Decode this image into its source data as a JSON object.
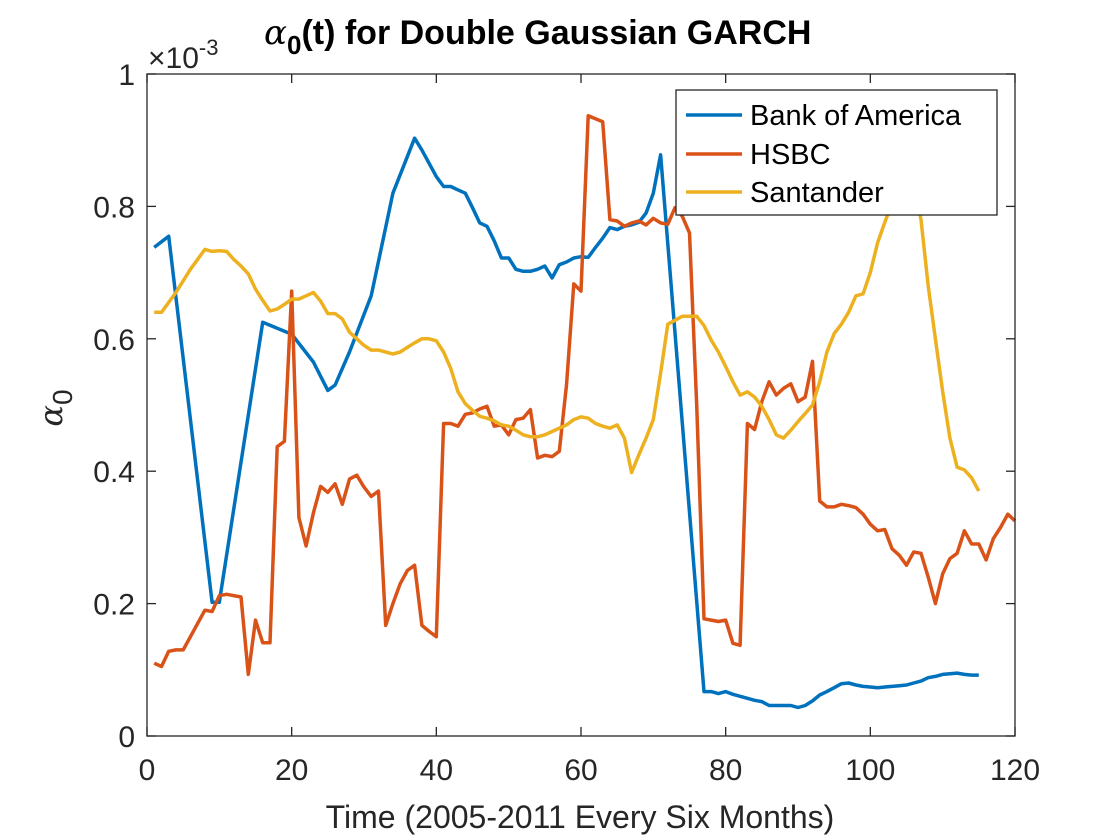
{
  "chart_data": {
    "type": "line",
    "title": {
      "alpha_symbol": "α",
      "subscript": "0",
      "rest": "(t) for Double Gaussian GARCH"
    },
    "xlabel": "Time (2005-2011 Every Six Months)",
    "ylabel": {
      "symbol": "α",
      "subscript": "0"
    },
    "exponent_label": {
      "prefix": "×10",
      "power": "-3"
    },
    "xlim": [
      0,
      120
    ],
    "ylim": [
      0,
      1
    ],
    "x_ticks": [
      0,
      20,
      40,
      60,
      80,
      100,
      120
    ],
    "y_ticks": [
      0,
      0.2,
      0.4,
      0.6,
      0.8,
      1
    ],
    "y_tick_labels": [
      "0",
      "0.2",
      "0.4",
      "0.6",
      "0.8",
      "1"
    ],
    "legend_position": "top-right",
    "grid": false,
    "series": [
      {
        "name": "Bank of America",
        "color": "#0072BD",
        "x": [
          1,
          3,
          9,
          10,
          16,
          20,
          23,
          25,
          26,
          28,
          31,
          34,
          37,
          38,
          40,
          41,
          42,
          43,
          44,
          45,
          46,
          47,
          48,
          49,
          50,
          51,
          52,
          53,
          54,
          55,
          56,
          57,
          58,
          59,
          60,
          61,
          62,
          63,
          64,
          65,
          66,
          67,
          68,
          69,
          70,
          71,
          77,
          78,
          79,
          80,
          81,
          82,
          83,
          84,
          85,
          86,
          87,
          88,
          89,
          90,
          91,
          92,
          93,
          94,
          95,
          96,
          97,
          98,
          99,
          100,
          101,
          102,
          103,
          104,
          105,
          106,
          107,
          108,
          109,
          110,
          111,
          112,
          113,
          114,
          115
        ],
        "values": [
          0.738,
          0.755,
          0.202,
          0.202,
          0.625,
          0.607,
          0.565,
          0.522,
          0.53,
          0.58,
          0.665,
          0.82,
          0.903,
          0.885,
          0.845,
          0.83,
          0.83,
          0.825,
          0.82,
          0.798,
          0.775,
          0.77,
          0.748,
          0.722,
          0.722,
          0.705,
          0.702,
          0.702,
          0.705,
          0.71,
          0.692,
          0.712,
          0.716,
          0.722,
          0.724,
          0.723,
          0.738,
          0.752,
          0.768,
          0.765,
          0.77,
          0.772,
          0.776,
          0.79,
          0.82,
          0.878,
          0.067,
          0.067,
          0.064,
          0.067,
          0.063,
          0.06,
          0.057,
          0.054,
          0.052,
          0.046,
          0.046,
          0.046,
          0.046,
          0.043,
          0.046,
          0.053,
          0.062,
          0.067,
          0.073,
          0.079,
          0.08,
          0.077,
          0.075,
          0.074,
          0.073,
          0.074,
          0.075,
          0.076,
          0.077,
          0.08,
          0.083,
          0.088,
          0.09,
          0.093,
          0.094,
          0.095,
          0.093,
          0.092,
          0.092
        ]
      },
      {
        "name": "HSBC",
        "color": "#D95319",
        "x": [
          1,
          2,
          3,
          4,
          5,
          8,
          9,
          10,
          11,
          13,
          14,
          15,
          16,
          17,
          18,
          19,
          20,
          21,
          22,
          23,
          24,
          25,
          26,
          27,
          28,
          29,
          30,
          31,
          32,
          33,
          34,
          35,
          36,
          37,
          38,
          39,
          40,
          41,
          42,
          43,
          44,
          45,
          46,
          47,
          48,
          49,
          50,
          51,
          52,
          53,
          54,
          55,
          56,
          57,
          58,
          59,
          60,
          61,
          63,
          64,
          65,
          66,
          67,
          68,
          69,
          70,
          71,
          72,
          73,
          74,
          75,
          76,
          77,
          78,
          79,
          80,
          81,
          82,
          83,
          84,
          85,
          86,
          87,
          88,
          89,
          90,
          91,
          92,
          93,
          94,
          95,
          96,
          97,
          98,
          99,
          100,
          101,
          102,
          103,
          104,
          105,
          106,
          107,
          108,
          109,
          110,
          111,
          112,
          113,
          114,
          115,
          116,
          117,
          118,
          119,
          120
        ],
        "values": [
          0.11,
          0.105,
          0.128,
          0.13,
          0.13,
          0.19,
          0.188,
          0.212,
          0.214,
          0.21,
          0.093,
          0.175,
          0.141,
          0.141,
          0.437,
          0.445,
          0.672,
          0.33,
          0.287,
          0.337,
          0.377,
          0.368,
          0.381,
          0.35,
          0.388,
          0.394,
          0.376,
          0.362,
          0.37,
          0.167,
          0.2,
          0.23,
          0.25,
          0.258,
          0.167,
          0.158,
          0.15,
          0.472,
          0.472,
          0.468,
          0.486,
          0.488,
          0.494,
          0.498,
          0.468,
          0.47,
          0.455,
          0.478,
          0.48,
          0.493,
          0.42,
          0.424,
          0.422,
          0.43,
          0.53,
          0.683,
          0.672,
          0.937,
          0.928,
          0.78,
          0.778,
          0.77,
          0.775,
          0.778,
          0.772,
          0.782,
          0.775,
          0.773,
          0.798,
          0.785,
          0.76,
          0.5,
          0.177,
          0.175,
          0.173,
          0.175,
          0.14,
          0.137,
          0.472,
          0.463,
          0.505,
          0.535,
          0.515,
          0.525,
          0.532,
          0.505,
          0.512,
          0.566,
          0.355,
          0.346,
          0.346,
          0.35,
          0.348,
          0.345,
          0.335,
          0.32,
          0.31,
          0.312,
          0.283,
          0.273,
          0.258,
          0.278,
          0.276,
          0.24,
          0.2,
          0.245,
          0.268,
          0.276,
          0.31,
          0.29,
          0.29,
          0.266,
          0.298,
          0.315,
          0.335,
          0.325
        ]
      },
      {
        "name": "Santander",
        "color": "#EDB120",
        "x": [
          1,
          2,
          4,
          6,
          8,
          9,
          10,
          11,
          12,
          13,
          14,
          15,
          16,
          17,
          18,
          19,
          20,
          21,
          22,
          23,
          24,
          25,
          26,
          27,
          28,
          29,
          30,
          31,
          32,
          33,
          34,
          35,
          36,
          37,
          38,
          39,
          40,
          41,
          42,
          43,
          44,
          45,
          46,
          47,
          48,
          49,
          50,
          51,
          52,
          53,
          54,
          55,
          56,
          57,
          58,
          59,
          60,
          61,
          62,
          63,
          64,
          65,
          66,
          67,
          68,
          69,
          70,
          71,
          72,
          73,
          74,
          75,
          76,
          77,
          78,
          79,
          80,
          81,
          82,
          83,
          84,
          85,
          86,
          87,
          88,
          89,
          90,
          91,
          92,
          93,
          94,
          95,
          96,
          97,
          98,
          99,
          100,
          101,
          102,
          103,
          104,
          105,
          106,
          107,
          108,
          109,
          110,
          111,
          112,
          113,
          114,
          115
        ],
        "values": [
          0.64,
          0.64,
          0.67,
          0.705,
          0.735,
          0.732,
          0.733,
          0.732,
          0.72,
          0.71,
          0.698,
          0.675,
          0.658,
          0.642,
          0.645,
          0.652,
          0.66,
          0.66,
          0.665,
          0.67,
          0.657,
          0.638,
          0.638,
          0.63,
          0.61,
          0.6,
          0.59,
          0.583,
          0.583,
          0.58,
          0.577,
          0.58,
          0.587,
          0.594,
          0.6,
          0.6,
          0.597,
          0.58,
          0.555,
          0.52,
          0.502,
          0.492,
          0.483,
          0.48,
          0.476,
          0.47,
          0.468,
          0.462,
          0.455,
          0.452,
          0.452,
          0.455,
          0.46,
          0.465,
          0.47,
          0.478,
          0.482,
          0.48,
          0.472,
          0.468,
          0.465,
          0.47,
          0.45,
          0.398,
          0.425,
          0.45,
          0.478,
          0.548,
          0.622,
          0.628,
          0.634,
          0.634,
          0.634,
          0.62,
          0.598,
          0.58,
          0.558,
          0.535,
          0.515,
          0.52,
          0.512,
          0.498,
          0.478,
          0.455,
          0.45,
          0.462,
          0.475,
          0.487,
          0.5,
          0.535,
          0.58,
          0.608,
          0.622,
          0.64,
          0.665,
          0.668,
          0.7,
          0.745,
          0.776,
          0.805,
          0.83,
          0.84,
          0.835,
          0.78,
          0.68,
          0.6,
          0.52,
          0.45,
          0.406,
          0.402,
          0.39,
          0.37
        ]
      }
    ]
  }
}
